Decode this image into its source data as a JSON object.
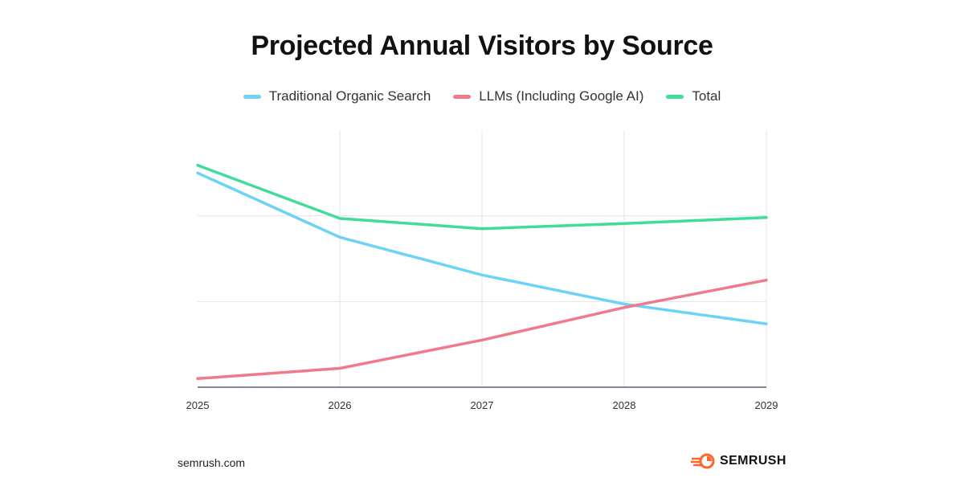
{
  "chart_data": {
    "type": "line",
    "title": "Projected Annual Visitors by Source",
    "xlabel": "",
    "ylabel": "",
    "categories": [
      "2025",
      "2026",
      "2027",
      "2028",
      "2029"
    ],
    "ylim": [
      0,
      3
    ],
    "grid": true,
    "legend_position": "top-center",
    "series": [
      {
        "name": "Traditional Organic Search",
        "color": "#6dd3f5",
        "values": [
          2.5,
          1.75,
          1.31,
          0.97,
          0.74
        ]
      },
      {
        "name": "LLMs (Including Google AI)",
        "color": "#f07a8c",
        "values": [
          0.1,
          0.22,
          0.55,
          0.93,
          1.25
        ]
      },
      {
        "name": "Total",
        "color": "#3fdc9a",
        "values": [
          2.59,
          1.97,
          1.85,
          1.91,
          1.98
        ]
      }
    ]
  },
  "footer": {
    "url": "semrush.com",
    "brand": "SEMRUSH",
    "brand_icon": "semrush-logo-icon",
    "brand_color": "#ff642d"
  }
}
